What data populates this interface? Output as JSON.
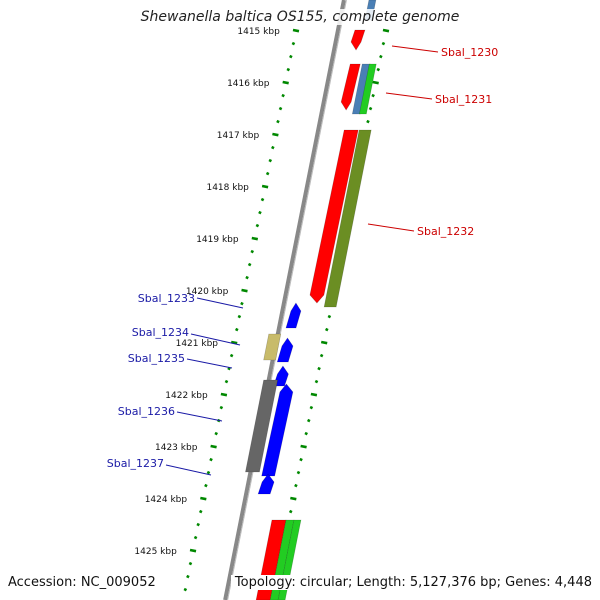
{
  "title": "Shewanella baltica OS155, complete genome",
  "accession": "Accession: NC_009052",
  "stats": "Topology: circular; Length: 5,127,376 bp; Genes: 4,448",
  "scale_labels": [
    "1415 kbp",
    "1416 kbp",
    "1417 kbp",
    "1418 kbp",
    "1419 kbp",
    "1420 kbp",
    "1421 kbp",
    "1422 kbp",
    "1423 kbp",
    "1424 kbp",
    "1425 kbp"
  ],
  "forward_genes": [
    {
      "name": "Sbal_1230",
      "color": "#cc0000"
    },
    {
      "name": "Sbal_1231",
      "color": "#cc0000"
    },
    {
      "name": "Sbal_1232",
      "color": "#cc0000"
    }
  ],
  "reverse_genes": [
    {
      "name": "Sbal_1233",
      "color": "#1a1aa6"
    },
    {
      "name": "Sbal_1234",
      "color": "#1a1aa6"
    },
    {
      "name": "Sbal_1235",
      "color": "#1a1aa6"
    },
    {
      "name": "Sbal_1236",
      "color": "#1a1aa6"
    },
    {
      "name": "Sbal_1237",
      "color": "#1a1aa6"
    }
  ],
  "feature_colors": {
    "forward_cds": "#ff0000",
    "reverse_cds": "#0000ff",
    "olive": "#6b8e23",
    "green": "#22cc22",
    "steelblue": "#4a7fb5",
    "khaki": "#c8bb6a",
    "gray": "#666666",
    "backbone": "#888888",
    "ticks": "#008800"
  }
}
